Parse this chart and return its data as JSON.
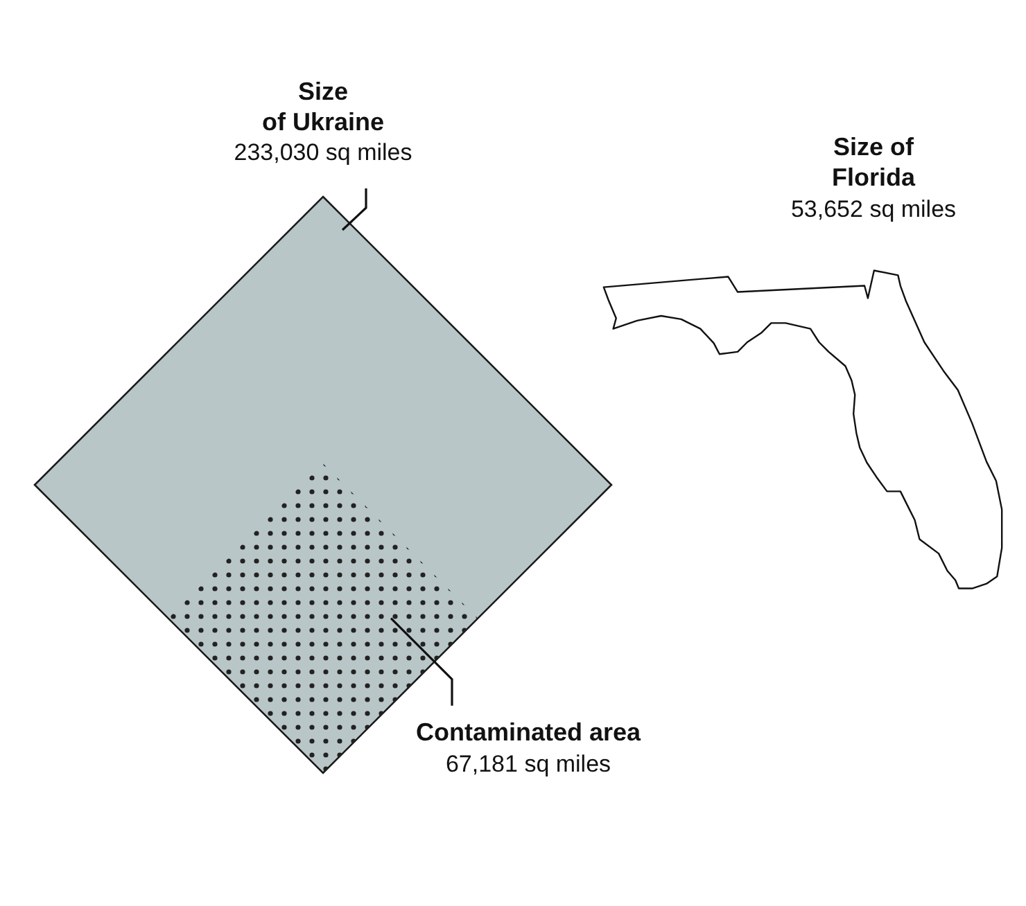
{
  "chart_data": {
    "type": "other",
    "categories": [
      "Size of Ukraine",
      "Contaminated area",
      "Size of Florida"
    ],
    "values": [
      233030,
      67181,
      53652
    ],
    "value_labels": [
      "233,030 sq miles",
      "67,181 sq miles",
      "53,652 sq miles"
    ],
    "colors": [
      "#b9c6c8",
      "#222222",
      "#111111"
    ]
  }
}
